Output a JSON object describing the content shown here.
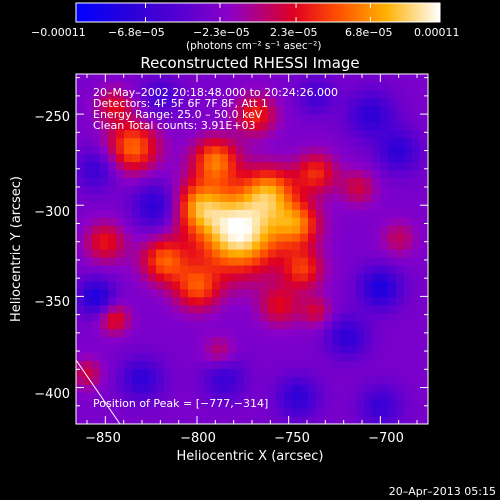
{
  "chart_data": {
    "type": "heatmap",
    "title": "Reconstructed RHESSI Image",
    "xlabel": "Heliocentric X (arcsec)",
    "ylabel": "Heliocentric Y (arcsec)",
    "xlim": [
      -866,
      -674
    ],
    "ylim": [
      -420,
      -228
    ],
    "xticks": [
      -850,
      -800,
      -750,
      -700
    ],
    "xtick_labels": [
      "−850",
      "−800",
      "−750",
      "−700"
    ],
    "yticks": [
      -250,
      -300,
      -350,
      -400
    ],
    "ytick_labels": [
      "−250",
      "−300",
      "−350",
      "−400"
    ],
    "colorbar": {
      "range": [
        -0.00011,
        0.00011
      ],
      "tick_labels": [
        "−0.00011",
        "−6.8e−05",
        "−2.3e−05",
        "2.3e−05",
        "6.8e−05",
        "0.00011"
      ],
      "tick_values": [
        -0.00011,
        -6.8e-05,
        -2.3e-05,
        2.3e-05,
        6.8e-05,
        0.00011
      ],
      "unit_label": "(photons cm⁻² s⁻¹ asec⁻²)"
    },
    "annotations": [
      "20–May–2002 20:18:48.000 to 20:24:26.000",
      "Detectors: 4F 5F 6F 7F 8F, Att 1",
      "Energy Range: 25.0 – 50.0 keV",
      "Clean    Total counts: 3.91E+03"
    ],
    "peak_label": "Position of Peak = [−777,−314]",
    "peak": [
      -777,
      -314
    ],
    "sources": [
      {
        "x": -777,
        "y": -314,
        "amp": 1.0,
        "sigma": 16
      },
      {
        "x": -800,
        "y": -300,
        "amp": 0.55,
        "sigma": 10
      },
      {
        "x": -760,
        "y": -292,
        "amp": 0.55,
        "sigma": 10
      },
      {
        "x": -790,
        "y": -275,
        "amp": 0.6,
        "sigma": 9
      },
      {
        "x": -745,
        "y": -310,
        "amp": 0.55,
        "sigma": 9
      },
      {
        "x": -835,
        "y": -268,
        "amp": 0.6,
        "sigma": 10
      },
      {
        "x": -818,
        "y": -330,
        "amp": 0.55,
        "sigma": 9
      },
      {
        "x": -800,
        "y": -345,
        "amp": 0.5,
        "sigma": 9
      },
      {
        "x": -735,
        "y": -282,
        "amp": 0.45,
        "sigma": 8
      },
      {
        "x": -742,
        "y": -335,
        "amp": 0.45,
        "sigma": 8
      },
      {
        "x": -768,
        "y": -250,
        "amp": 0.45,
        "sigma": 8
      },
      {
        "x": -850,
        "y": -320,
        "amp": 0.4,
        "sigma": 8
      },
      {
        "x": -845,
        "y": -362,
        "amp": 0.4,
        "sigma": 6
      },
      {
        "x": -712,
        "y": -290,
        "amp": 0.3,
        "sigma": 7
      },
      {
        "x": -690,
        "y": -318,
        "amp": 0.25,
        "sigma": 7
      },
      {
        "x": -755,
        "y": -355,
        "amp": 0.35,
        "sigma": 8
      },
      {
        "x": -735,
        "y": -358,
        "amp": 0.3,
        "sigma": 6
      },
      {
        "x": -845,
        "y": -245,
        "amp": 0.35,
        "sigma": 7
      },
      {
        "x": -788,
        "y": -380,
        "amp": 0.25,
        "sigma": 6
      },
      {
        "x": -860,
        "y": -392,
        "amp": 0.3,
        "sigma": 6
      },
      {
        "x": -822,
        "y": -300,
        "amp": -0.4,
        "sigma": 9
      },
      {
        "x": -855,
        "y": -280,
        "amp": -0.3,
        "sigma": 8
      },
      {
        "x": -705,
        "y": -250,
        "amp": -0.35,
        "sigma": 9
      },
      {
        "x": -690,
        "y": -270,
        "amp": -0.35,
        "sigma": 8
      },
      {
        "x": -700,
        "y": -345,
        "amp": -0.45,
        "sigma": 8
      },
      {
        "x": -718,
        "y": -372,
        "amp": -0.35,
        "sigma": 8
      },
      {
        "x": -855,
        "y": -350,
        "amp": -0.45,
        "sigma": 7
      },
      {
        "x": -830,
        "y": -395,
        "amp": -0.35,
        "sigma": 8
      },
      {
        "x": -785,
        "y": -395,
        "amp": -0.3,
        "sigma": 8
      },
      {
        "x": -745,
        "y": -405,
        "amp": -0.35,
        "sigma": 8
      },
      {
        "x": -700,
        "y": -410,
        "amp": -0.3,
        "sigma": 8
      },
      {
        "x": -820,
        "y": -240,
        "amp": -0.25,
        "sigma": 7
      },
      {
        "x": -735,
        "y": -240,
        "amp": -0.25,
        "sigma": 7
      }
    ]
  },
  "footer": {
    "date": "20–Apr–2013 05:15"
  }
}
